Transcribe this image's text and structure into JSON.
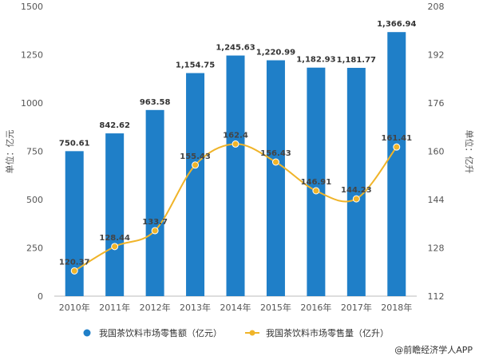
{
  "chart_data": {
    "type": "bar+line",
    "categories": [
      "2010年",
      "2011年",
      "2012年",
      "2013年",
      "2014年",
      "2015年",
      "2016年",
      "2017年",
      "2018年"
    ],
    "series": [
      {
        "name": "我国茶饮料市场零售额（亿元）",
        "type": "bar",
        "axis": "left",
        "color": "#1f7fc8",
        "values": [
          750.61,
          842.62,
          963.58,
          1154.75,
          1245.63,
          1220.99,
          1182.93,
          1181.77,
          1366.94
        ],
        "labels": [
          "750.61",
          "842.62",
          "963.58",
          "1,154.75",
          "1,245.63",
          "1,220.99",
          "1,182.93",
          "1,181.77",
          "1,366.94"
        ]
      },
      {
        "name": "我国茶饮料市场零售量（亿升）",
        "type": "line",
        "axis": "right",
        "color": "#f0b429",
        "values": [
          120.37,
          128.44,
          133.7,
          155.43,
          162.4,
          156.43,
          146.91,
          144.23,
          161.41
        ],
        "labels": [
          "120.37",
          "128.44",
          "133.7",
          "155.43",
          "162.4",
          "156.43",
          "146.91",
          "144.23",
          "161.41"
        ]
      }
    ],
    "ylabel_left": "单位：亿元",
    "ylabel_right": "单位：亿升",
    "ylim_left": [
      0,
      1500
    ],
    "yticks_left": [
      0,
      250,
      500,
      750,
      1000,
      1250,
      1500
    ],
    "ylim_right": [
      112,
      208
    ],
    "yticks_right": [
      112,
      128,
      144,
      160,
      176,
      192,
      208
    ],
    "legend_position": "bottom-center",
    "grid": false
  },
  "source_text": "@前瞻经济学人APP"
}
